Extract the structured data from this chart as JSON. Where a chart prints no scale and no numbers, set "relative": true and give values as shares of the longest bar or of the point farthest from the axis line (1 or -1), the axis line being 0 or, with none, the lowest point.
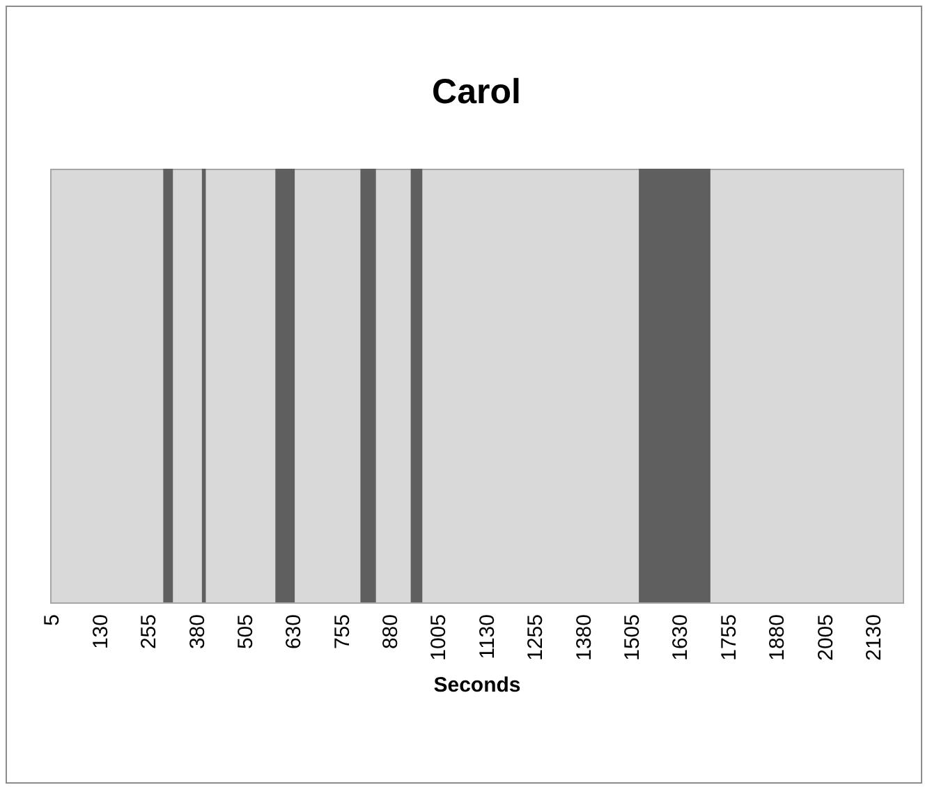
{
  "chart_data": {
    "type": "area",
    "title": "Carol",
    "xlabel": "Seconds",
    "relative": true,
    "x": [
      2.5,
      295,
      320,
      395,
      405,
      585,
      635,
      805,
      845,
      935,
      965,
      1525,
      1710,
      2207.5
    ],
    "series": [
      {
        "color": "#5f5f5f",
        "values": [
          0,
          1,
          0,
          1,
          0,
          1,
          0,
          1,
          0,
          1,
          0,
          1,
          0,
          0
        ]
      }
    ],
    "xlim": [
      2.5,
      2207.5
    ],
    "xticks": [
      5,
      130,
      255,
      380,
      505,
      630,
      755,
      880,
      1005,
      1130,
      1255,
      1380,
      1505,
      1630,
      1755,
      1880,
      2005,
      2130
    ],
    "grid": false,
    "legend": false
  }
}
